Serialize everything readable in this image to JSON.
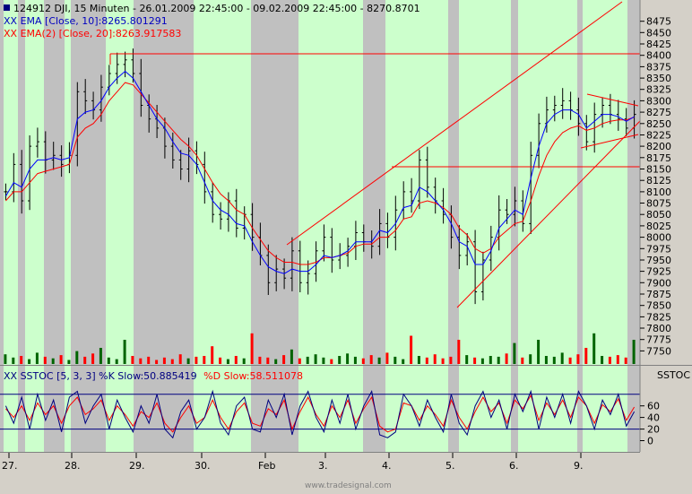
{
  "header": {
    "main_title": "124912  DJI, 15 Minuten - 26.01.2009 22:45:00 - 09.02.2009 22:45:00 - 8270.8701",
    "ema10_label": "XX EMA [Close, 10]:8265.801291",
    "ema20_label": "XX EMA(2) [Close, 20]:8263.917583"
  },
  "oscillator": {
    "title": "XX SSTOC [5, 3, 3] %K Slow:50.885419 %D Slow:58.511078",
    "title_parts": {
      "prefix": "XX SSTOC [5, 3, 3] %K Slow:50.885419",
      "d_part": "%D Slow:58.511078"
    },
    "axis_title": "SSTOC",
    "y_ticks": [
      "60",
      "40",
      "20",
      "0"
    ],
    "upper_line": 80,
    "lower_line": 20
  },
  "watermark": "www.tradesignal.com",
  "colors": {
    "background": "#ffffff",
    "panel": "#d4d0c8",
    "session_green": "#ccffcc",
    "session_gray": "#c0c0c0",
    "price_bar": "#000000",
    "ema10": "#0000ff",
    "ema20": "#ff0000",
    "k_line": "#000080",
    "d_line": "#ff0000",
    "trend_line": "#ff0000",
    "volume_up": "#006400",
    "volume_down": "#ff0000",
    "title_blue": "#0000c0",
    "title_red": "#ff0000"
  },
  "chart_data": [
    {
      "type": "line",
      "title": "124912  DJI, 15 Minuten - 26.01.2009 22:45:00 - 09.02.2009 22:45:00 - 8270.8701",
      "y_ticks": [
        8475,
        8450,
        8425,
        8400,
        8375,
        8350,
        8325,
        8300,
        8275,
        8250,
        8225,
        8200,
        8175,
        8150,
        8125,
        8100,
        8075,
        8050,
        8025,
        8000,
        7975,
        7950,
        7925,
        7900,
        7875,
        7850,
        7825,
        7800,
        7775,
        7750
      ],
      "ylim": [
        7735,
        8498
      ],
      "x_labels": [
        "27.",
        "28.",
        "29.",
        "30.",
        "Feb",
        "3.",
        "4.",
        "5.",
        "6.",
        "9."
      ],
      "series": [
        {
          "name": "DJI",
          "values": [
            8100,
            8160,
            8080,
            8200,
            8210,
            8170,
            8180,
            8160,
            8180,
            8320,
            8300,
            8280,
            8330,
            8360,
            8380,
            8390,
            8360,
            8290,
            8260,
            8240,
            8200,
            8170,
            8150,
            8190,
            8160,
            8100,
            8050,
            8040,
            8080,
            8020,
            8050,
            8000,
            7960,
            7900,
            7930,
            7910,
            7970,
            7900,
            7920,
            7970,
            8000,
            7950,
            7960,
            7980,
            8010,
            7990,
            7980,
            8030,
            8000,
            8060,
            8100,
            8080,
            8170,
            8110,
            8080,
            8050,
            8000,
            7960,
            7990,
            7880,
            7950,
            8000,
            8060,
            8050,
            8080,
            8030,
            8180,
            8250,
            8280,
            8290,
            8300,
            8280,
            8250,
            8210,
            8270,
            8290,
            8270,
            8260,
            8240,
            8270
          ]
        },
        {
          "name": "EMA [Close, 10]",
          "values": [
            8090,
            8120,
            8110,
            8150,
            8170,
            8170,
            8175,
            8170,
            8175,
            8260,
            8275,
            8280,
            8300,
            8330,
            8350,
            8365,
            8350,
            8320,
            8290,
            8260,
            8240,
            8210,
            8185,
            8180,
            8160,
            8120,
            8080,
            8060,
            8050,
            8030,
            8025,
            7990,
            7960,
            7935,
            7925,
            7920,
            7930,
            7925,
            7925,
            7940,
            7960,
            7955,
            7960,
            7970,
            7990,
            7990,
            7990,
            8015,
            8010,
            8030,
            8065,
            8070,
            8110,
            8100,
            8080,
            8060,
            8030,
            7990,
            7980,
            7940,
            7940,
            7970,
            8020,
            8040,
            8060,
            8050,
            8130,
            8200,
            8250,
            8270,
            8280,
            8280,
            8270,
            8240,
            8255,
            8270,
            8270,
            8265,
            8255,
            8265
          ]
        },
        {
          "name": "EMA(2) [Close, 20]",
          "values": [
            8080,
            8100,
            8100,
            8120,
            8140,
            8145,
            8150,
            8155,
            8160,
            8220,
            8240,
            8250,
            8270,
            8300,
            8320,
            8340,
            8335,
            8315,
            8295,
            8275,
            8255,
            8235,
            8215,
            8200,
            8180,
            8150,
            8120,
            8095,
            8080,
            8060,
            8050,
            8020,
            7995,
            7970,
            7955,
            7945,
            7945,
            7940,
            7940,
            7945,
            7955,
            7955,
            7960,
            7965,
            7980,
            7985,
            7985,
            8000,
            8000,
            8015,
            8040,
            8045,
            8075,
            8080,
            8075,
            8065,
            8050,
            8020,
            8005,
            7975,
            7965,
            7975,
            8000,
            8015,
            8030,
            8035,
            8080,
            8135,
            8180,
            8210,
            8230,
            8240,
            8245,
            8235,
            8240,
            8250,
            8255,
            8258,
            8258,
            8264
          ]
        }
      ]
    },
    {
      "type": "bar",
      "title": "Volume",
      "values": [
        12,
        8,
        10,
        6,
        14,
        9,
        7,
        11,
        5,
        16,
        9,
        13,
        20,
        8,
        6,
        30,
        10,
        7,
        9,
        5,
        8,
        6,
        12,
        7,
        9,
        10,
        22,
        8,
        6,
        10,
        7,
        38,
        9,
        8,
        6,
        11,
        18,
        7,
        9,
        12,
        8,
        6,
        10,
        13,
        9,
        7,
        11,
        8,
        14,
        9,
        6,
        35,
        10,
        8,
        12,
        7,
        9,
        30,
        11,
        8,
        7,
        10,
        9,
        13,
        26,
        8,
        12,
        30,
        10,
        9,
        14,
        8,
        12,
        20,
        38,
        10,
        9,
        11,
        8,
        30
      ]
    },
    {
      "type": "line",
      "title": "SSTOC [5, 3, 3]",
      "ylim": [
        -10,
        95
      ],
      "series": [
        {
          "name": "%K Slow",
          "values": [
            60,
            30,
            75,
            20,
            80,
            35,
            70,
            15,
            75,
            85,
            30,
            60,
            80,
            20,
            70,
            40,
            15,
            60,
            30,
            80,
            20,
            5,
            50,
            70,
            20,
            40,
            85,
            30,
            10,
            60,
            75,
            20,
            15,
            70,
            40,
            80,
            10,
            60,
            85,
            40,
            15,
            70,
            30,
            80,
            20,
            60,
            85,
            10,
            5,
            15,
            80,
            60,
            25,
            70,
            40,
            15,
            80,
            30,
            10,
            60,
            85,
            40,
            70,
            20,
            80,
            50,
            85,
            20,
            75,
            40,
            80,
            30,
            85,
            60,
            20,
            70,
            45,
            80,
            25,
            50
          ]
        },
        {
          "name": "%D Slow",
          "values": [
            55,
            40,
            60,
            35,
            65,
            45,
            60,
            30,
            60,
            75,
            45,
            55,
            70,
            35,
            60,
            45,
            25,
            50,
            40,
            65,
            30,
            15,
            40,
            60,
            30,
            40,
            70,
            40,
            20,
            50,
            65,
            30,
            25,
            55,
            45,
            70,
            20,
            50,
            75,
            45,
            25,
            60,
            40,
            70,
            30,
            55,
            75,
            25,
            15,
            20,
            65,
            60,
            35,
            60,
            45,
            25,
            70,
            40,
            20,
            50,
            75,
            50,
            65,
            30,
            70,
            55,
            78,
            35,
            65,
            45,
            70,
            40,
            75,
            60,
            30,
            62,
            50,
            72,
            35,
            58
          ]
        }
      ]
    }
  ]
}
